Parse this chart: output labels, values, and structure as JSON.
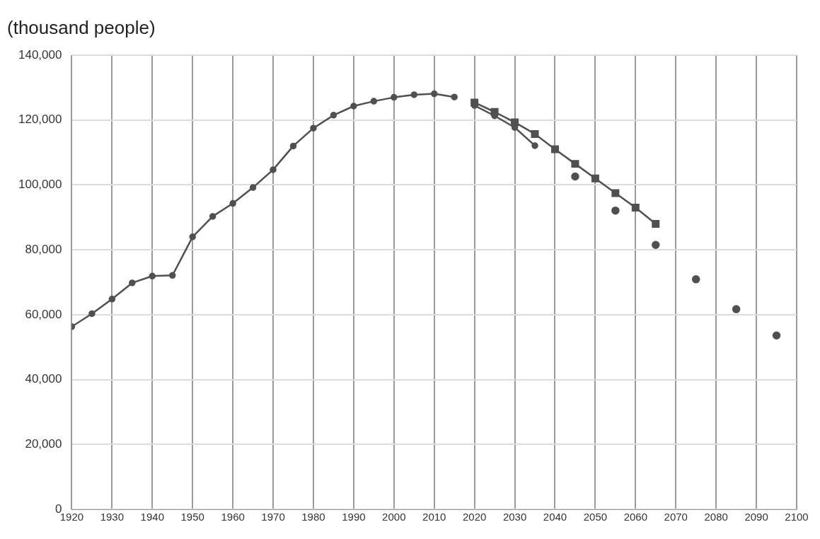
{
  "chart_data": {
    "type": "line",
    "ylabel": "(thousand people)",
    "xlim": [
      1920,
      2100
    ],
    "xticks": [
      1920,
      1930,
      1940,
      1950,
      1960,
      1970,
      1980,
      1990,
      2000,
      2010,
      2020,
      2030,
      2040,
      2050,
      2060,
      2070,
      2080,
      2090,
      2100
    ],
    "ylim": [
      0,
      140000
    ],
    "yticks": [
      {
        "value": 0,
        "label": "0"
      },
      {
        "value": 20000,
        "label": "20,000"
      },
      {
        "value": 40000,
        "label": "40,000"
      },
      {
        "value": 60000,
        "label": "60,000"
      },
      {
        "value": 80000,
        "label": "80,000"
      },
      {
        "value": 100000,
        "label": "100,000"
      },
      {
        "value": 120000,
        "label": "120,000"
      },
      {
        "value": 140000,
        "label": "140,000"
      }
    ],
    "grid": true,
    "legend": false,
    "series": [
      {
        "color": "#505050",
        "marker": "circle",
        "x": [
          1920,
          1925,
          1930,
          1935,
          1940,
          1945,
          1950,
          1955,
          1960,
          1965,
          1970,
          1975,
          1980,
          1985,
          1990,
          1995,
          2000,
          2005,
          2010,
          2015
        ],
        "values": [
          56300,
          60300,
          64800,
          69800,
          71900,
          72100,
          84000,
          90300,
          94300,
          99200,
          104700,
          112000,
          117500,
          121500,
          124300,
          125800,
          127000,
          127800,
          128100,
          127100
        ]
      },
      {
        "color": "#505050",
        "marker": "circle",
        "x": [
          2020,
          2025,
          2030,
          2035
        ],
        "values": [
          124500,
          121300,
          117700,
          112100
        ]
      },
      {
        "color": "#505050",
        "marker": "square",
        "x": [
          2020,
          2025,
          2030,
          2035,
          2040,
          2045,
          2050,
          2055,
          2060,
          2065
        ],
        "values": [
          125400,
          122500,
          119300,
          115700,
          111000,
          106500,
          102000,
          97500,
          93000,
          88000
        ]
      },
      {
        "type": "scatter",
        "color": "#505050",
        "marker": "circle",
        "x": [
          2045,
          2055,
          2065,
          2075,
          2085,
          2095
        ],
        "values": [
          102600,
          92100,
          81500,
          70900,
          61700,
          53600
        ]
      }
    ]
  }
}
